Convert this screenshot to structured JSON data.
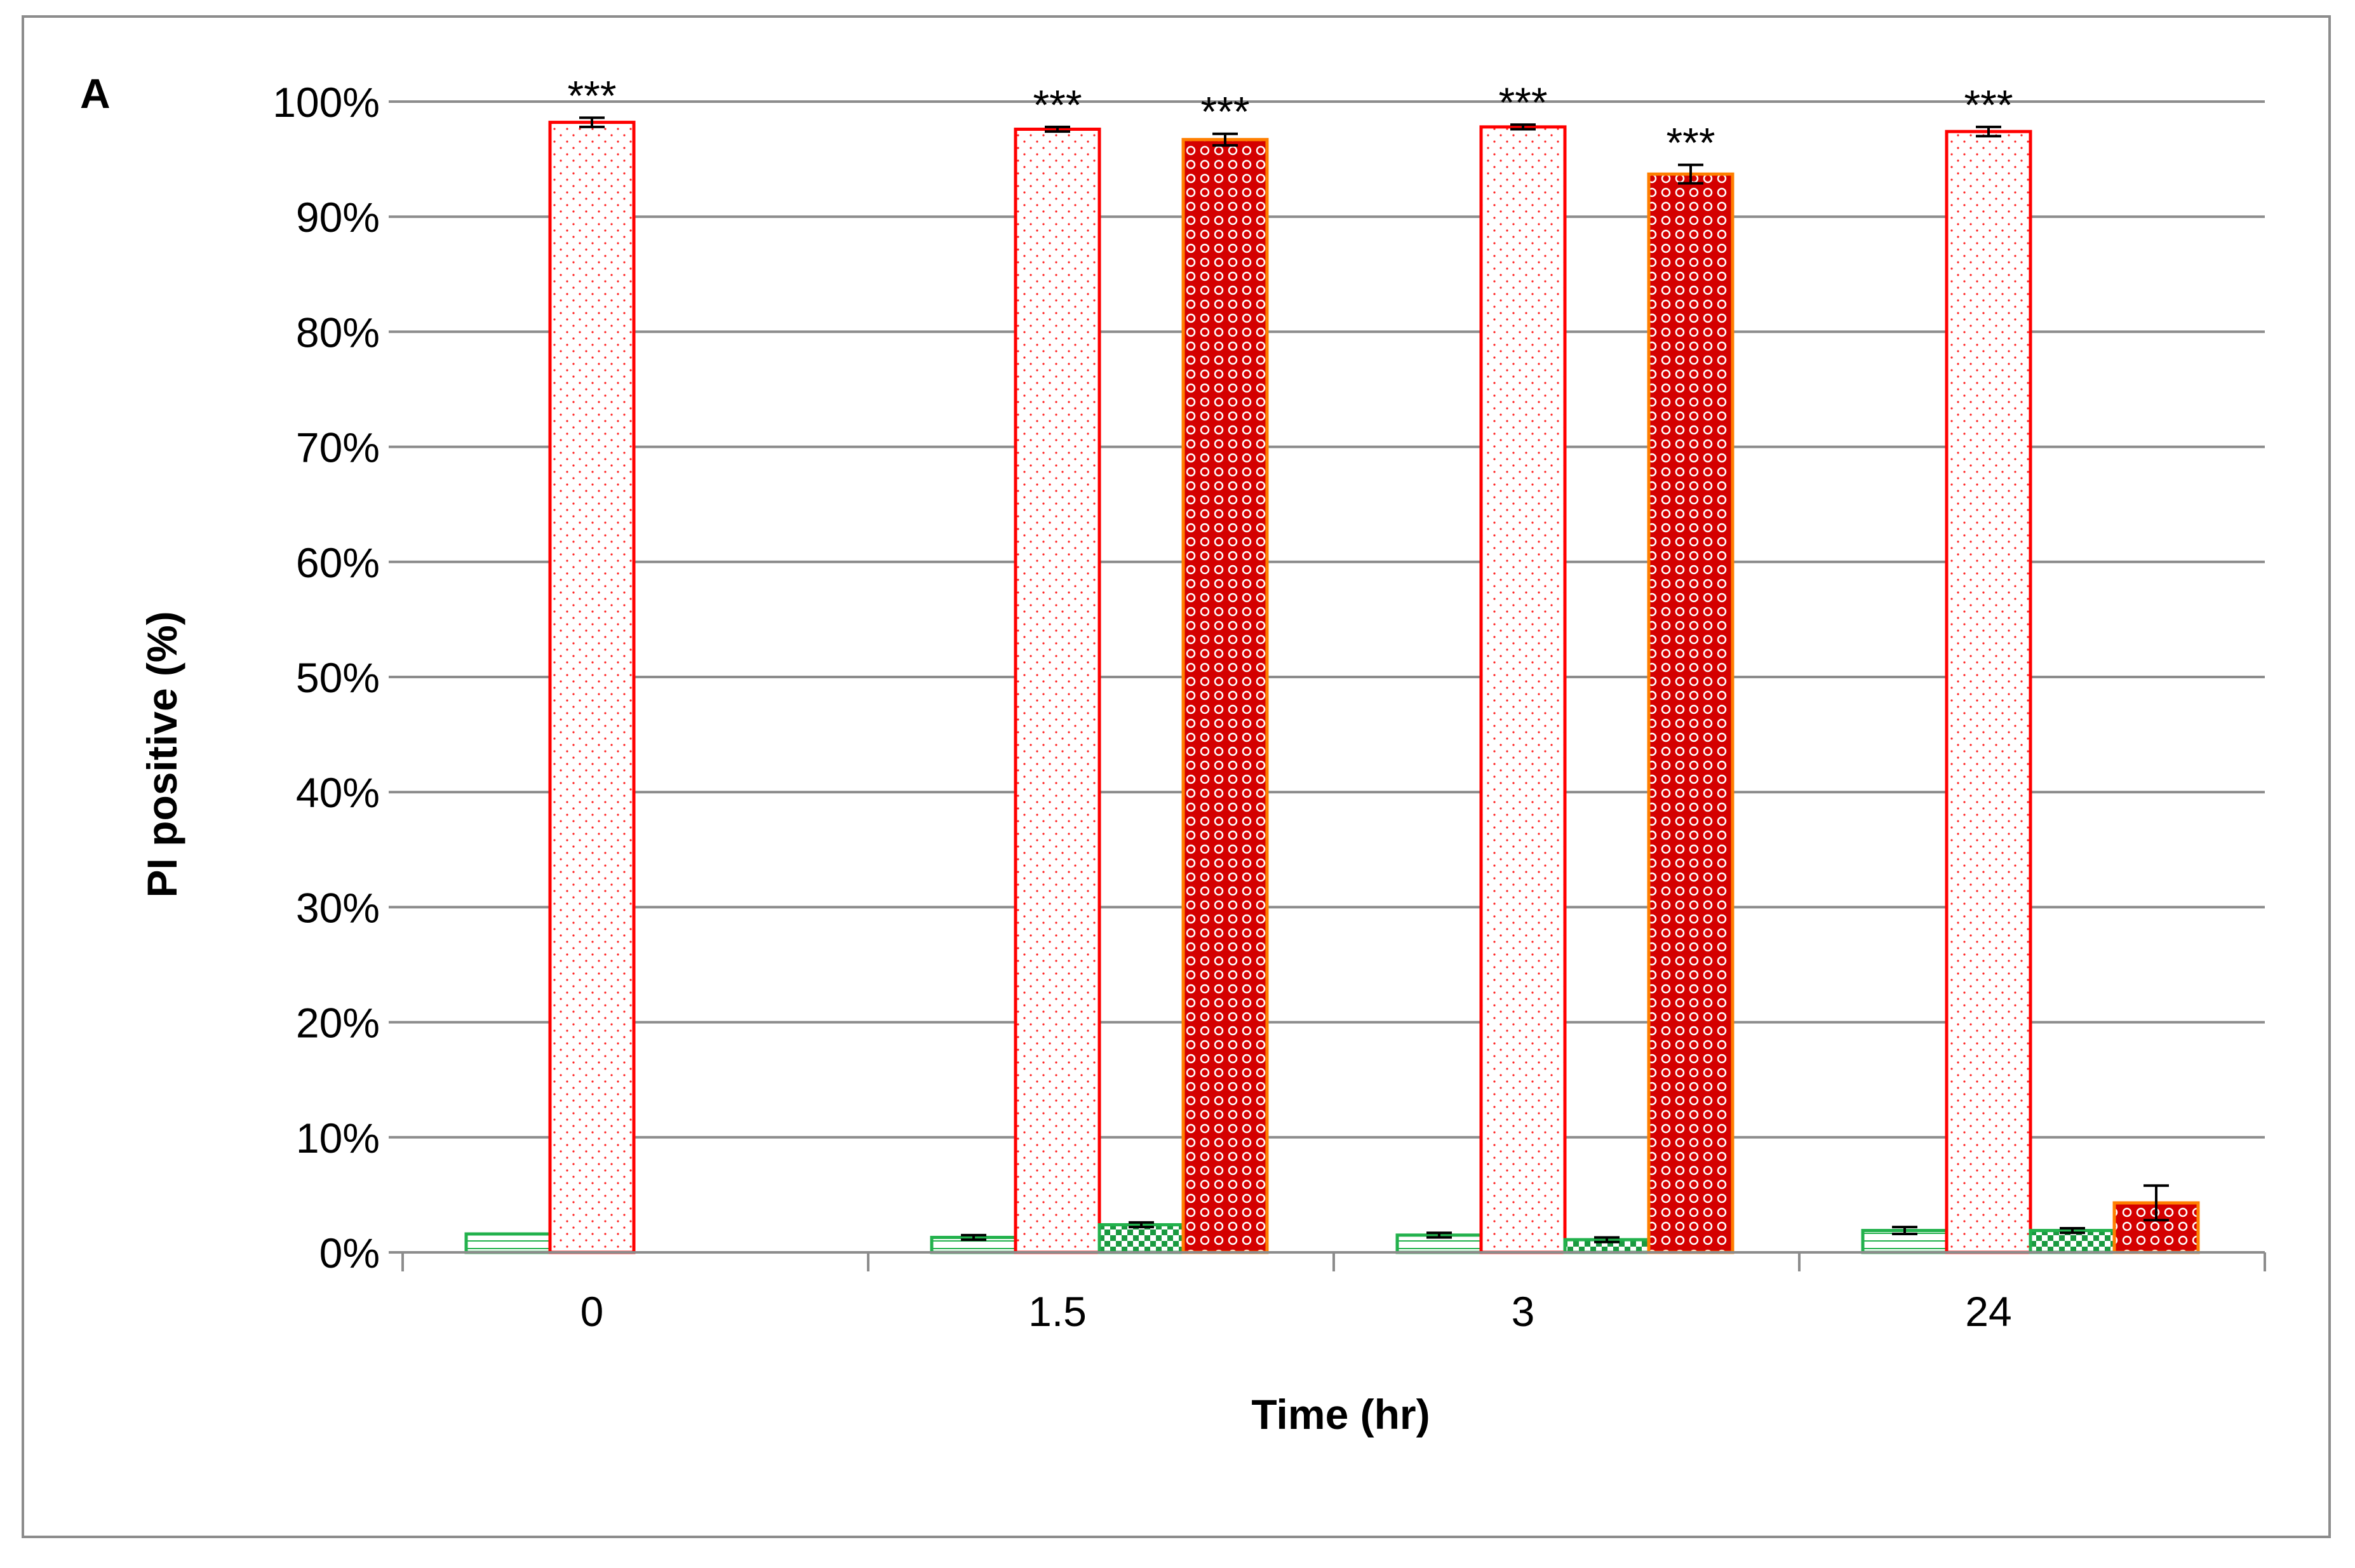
{
  "chart_data": {
    "type": "bar",
    "panel_label": "A",
    "xlabel": "Time (hr)",
    "ylabel": "PI positive (%)",
    "categories": [
      "0",
      "1.5",
      "3",
      "24"
    ],
    "y_ticks": [
      "0%",
      "10%",
      "20%",
      "30%",
      "40%",
      "50%",
      "60%",
      "70%",
      "80%",
      "90%",
      "100%"
    ],
    "ylim": [
      0,
      100
    ],
    "grid": true,
    "legend": "none",
    "significance_marker": "***",
    "series": [
      {
        "values": [
          1.6,
          1.3,
          1.5,
          1.9
        ],
        "errors": [
          0.0,
          0.2,
          0.2,
          0.3
        ],
        "significant": [
          false,
          false,
          false,
          false
        ],
        "pattern": "hatch-green",
        "stroke": "#22b14c"
      },
      {
        "values": [
          98.2,
          97.6,
          97.8,
          97.4
        ],
        "errors": [
          0.4,
          0.2,
          0.2,
          0.4
        ],
        "significant": [
          true,
          true,
          true,
          true
        ],
        "pattern": "dots-red",
        "stroke": "#ff0000"
      },
      {
        "values": [
          0,
          2.4,
          1.1,
          1.9
        ],
        "errors": [
          0,
          0.2,
          0.2,
          0.2
        ],
        "significant": [
          false,
          false,
          false,
          false
        ],
        "pattern": "checker-green",
        "stroke": "#22b14c"
      },
      {
        "values": [
          0,
          96.7,
          93.7,
          4.3
        ],
        "errors": [
          0,
          0.5,
          0.8,
          1.5
        ],
        "significant": [
          false,
          true,
          true,
          false
        ],
        "pattern": "circles-red",
        "stroke": "#ff7f00"
      }
    ]
  }
}
